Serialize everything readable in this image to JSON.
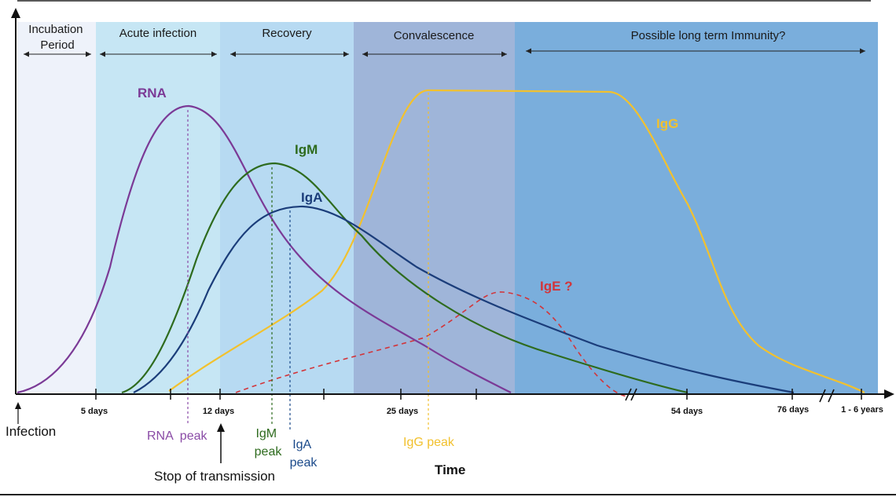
{
  "phases": [
    {
      "label_lines": [
        "Incubation",
        "Period"
      ],
      "color": "#eef2fa"
    },
    {
      "label_lines": [
        "Acute infection"
      ],
      "color": "#c6e6f4"
    },
    {
      "label_lines": [
        "Recovery"
      ],
      "color": "#b7daf2"
    },
    {
      "label_lines": [
        "Convalescence"
      ],
      "color": "#9fb5d9"
    },
    {
      "label_lines": [
        "Possible long term Immunity?"
      ],
      "color": "#7aaedc"
    }
  ],
  "x_ticks": [
    {
      "label": "5 days"
    },
    {
      "label": "12 days"
    },
    {
      "label": "25 days"
    },
    {
      "label": "54 days"
    },
    {
      "label": "76 days"
    },
    {
      "label": "1 - 6 years"
    }
  ],
  "series": [
    {
      "name": "RNA",
      "color": "#7b3a96"
    },
    {
      "name": "IgM",
      "color": "#2e6b1e"
    },
    {
      "name": "IgA",
      "color": "#1b3d7a"
    },
    {
      "name": "IgG",
      "color": "#f2c12e"
    },
    {
      "name": "IgE ?",
      "color": "#d2353a"
    }
  ],
  "peaks": [
    {
      "lines": [
        "RNA  peak"
      ],
      "color": "#8a4ba6"
    },
    {
      "lines": [
        "IgM",
        "peak"
      ],
      "color": "#2e6b1e"
    },
    {
      "lines": [
        "IgA",
        "peak"
      ],
      "color": "#1b4a8a"
    },
    {
      "lines": [
        "IgG peak"
      ],
      "color": "#f2c12e"
    }
  ],
  "axis": {
    "origin_label": "Infection",
    "stop_label": "Stop of transmission",
    "x_title": "Time"
  }
}
